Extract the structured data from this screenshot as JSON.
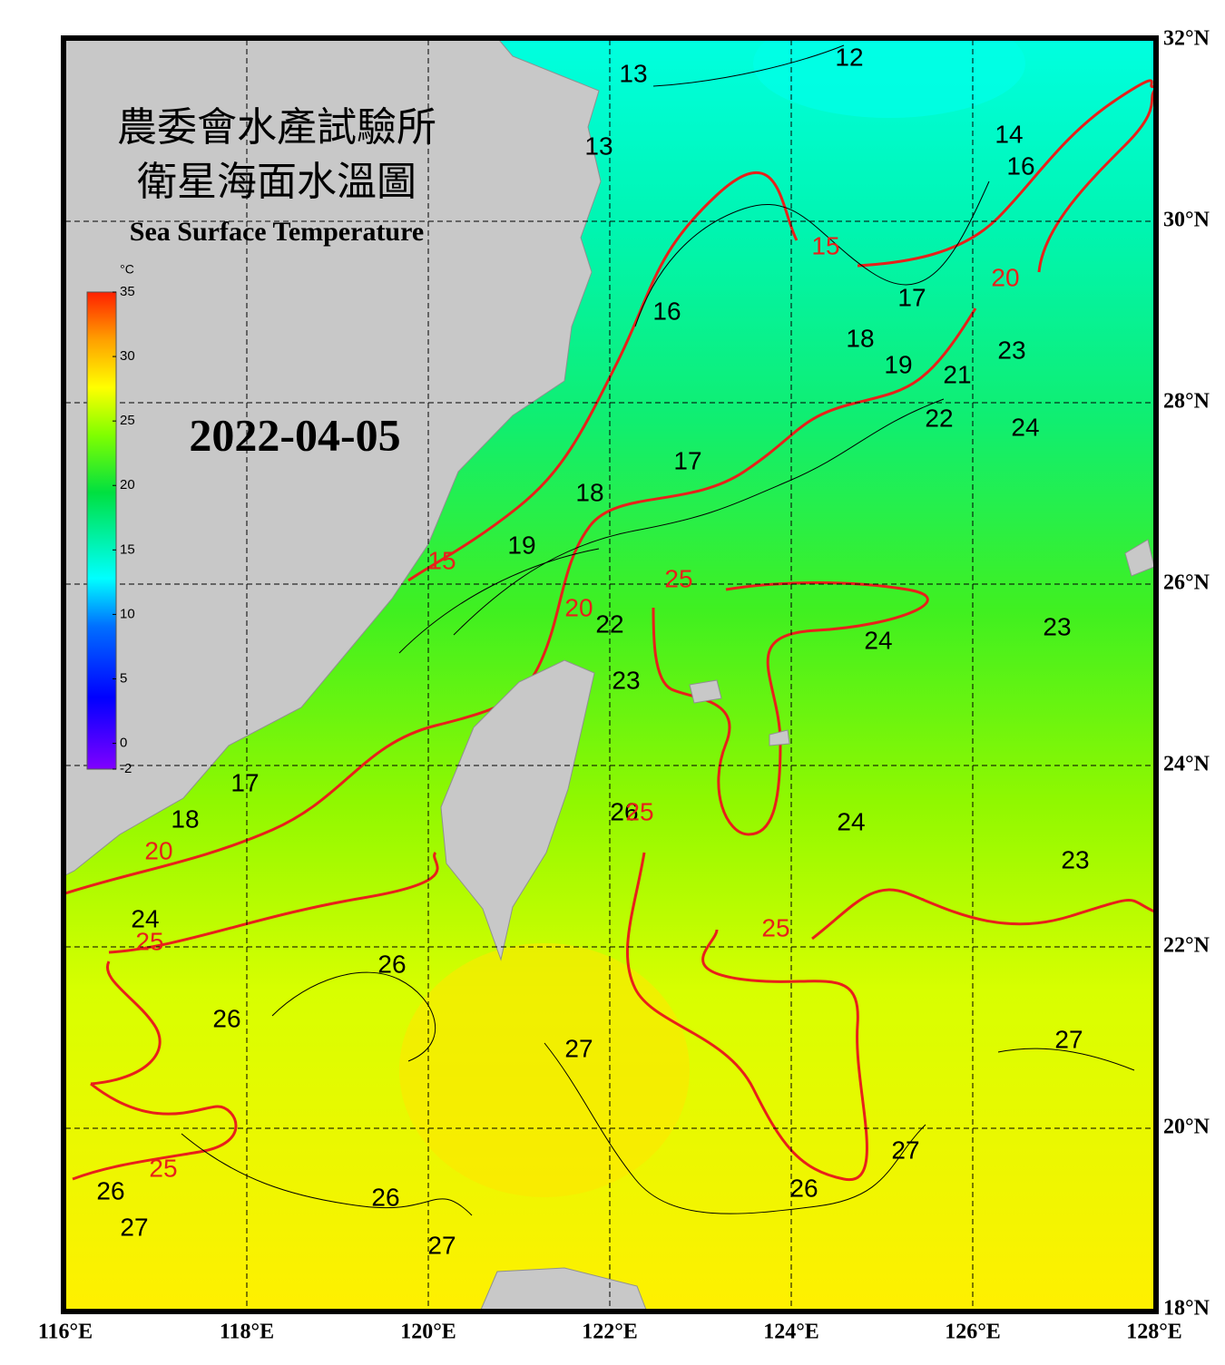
{
  "map": {
    "title_zh_1": "農委會水產試驗所",
    "title_zh_2": "衛星海面水溫圖",
    "title_en": "Sea Surface Temperature",
    "date": "2022-04-05",
    "lonlim": [
      116,
      128
    ],
    "latlim": [
      18,
      32
    ],
    "lonticks": [
      {
        "value": 116,
        "label": "116°E"
      },
      {
        "value": 118,
        "label": "118°E"
      },
      {
        "value": 120,
        "label": "120°E"
      },
      {
        "value": 122,
        "label": "122°E"
      },
      {
        "value": 124,
        "label": "124°E"
      },
      {
        "value": 126,
        "label": "126°E"
      },
      {
        "value": 128,
        "label": "128°E"
      }
    ],
    "latticks": [
      {
        "value": 18,
        "label": "18°N"
      },
      {
        "value": 20,
        "label": "20°N"
      },
      {
        "value": 22,
        "label": "22°N"
      },
      {
        "value": 24,
        "label": "24°N"
      },
      {
        "value": 26,
        "label": "26°N"
      },
      {
        "value": 28,
        "label": "28°N"
      },
      {
        "value": 30,
        "label": "30°N"
      },
      {
        "value": 32,
        "label": "32°N"
      }
    ],
    "colorbar": {
      "unit": "°C",
      "lim": [
        -2,
        35
      ],
      "ticks": [
        35,
        30,
        25,
        20,
        15,
        10,
        5,
        0,
        -2
      ]
    },
    "contour_labels": [
      {
        "text": "12",
        "lon": 124.64,
        "lat": 31.79,
        "color": "#000000"
      },
      {
        "text": "13",
        "lon": 122.26,
        "lat": 31.61,
        "color": "#000000"
      },
      {
        "text": "13",
        "lon": 121.88,
        "lat": 30.81,
        "color": "#000000"
      },
      {
        "text": "14",
        "lon": 126.4,
        "lat": 30.94,
        "color": "#000000"
      },
      {
        "text": "16",
        "lon": 126.53,
        "lat": 30.59,
        "color": "#000000"
      },
      {
        "text": "15",
        "lon": 124.38,
        "lat": 29.71,
        "color": "#e8201a"
      },
      {
        "text": "20",
        "lon": 126.36,
        "lat": 29.36,
        "color": "#e8201a"
      },
      {
        "text": "17",
        "lon": 125.33,
        "lat": 29.14,
        "color": "#000000"
      },
      {
        "text": "16",
        "lon": 122.63,
        "lat": 28.99,
        "color": "#000000"
      },
      {
        "text": "18",
        "lon": 124.76,
        "lat": 28.69,
        "color": "#000000"
      },
      {
        "text": "19",
        "lon": 125.18,
        "lat": 28.4,
        "color": "#000000"
      },
      {
        "text": "21",
        "lon": 125.83,
        "lat": 28.29,
        "color": "#000000"
      },
      {
        "text": "23",
        "lon": 126.43,
        "lat": 28.56,
        "color": "#000000"
      },
      {
        "text": "22",
        "lon": 125.63,
        "lat": 27.81,
        "color": "#000000"
      },
      {
        "text": "24",
        "lon": 126.58,
        "lat": 27.71,
        "color": "#000000"
      },
      {
        "text": "17",
        "lon": 122.86,
        "lat": 27.34,
        "color": "#000000"
      },
      {
        "text": "18",
        "lon": 121.78,
        "lat": 26.99,
        "color": "#000000"
      },
      {
        "text": "19",
        "lon": 121.03,
        "lat": 26.41,
        "color": "#000000"
      },
      {
        "text": "15",
        "lon": 120.15,
        "lat": 26.24,
        "color": "#e8201a"
      },
      {
        "text": "25",
        "lon": 122.76,
        "lat": 26.04,
        "color": "#e8201a"
      },
      {
        "text": "20",
        "lon": 121.66,
        "lat": 25.72,
        "color": "#e8201a"
      },
      {
        "text": "22",
        "lon": 122.0,
        "lat": 25.54,
        "color": "#000000"
      },
      {
        "text": "24",
        "lon": 124.96,
        "lat": 25.36,
        "color": "#000000"
      },
      {
        "text": "23",
        "lon": 126.93,
        "lat": 25.51,
        "color": "#000000"
      },
      {
        "text": "23",
        "lon": 122.18,
        "lat": 24.92,
        "color": "#000000"
      },
      {
        "text": "17",
        "lon": 117.98,
        "lat": 23.79,
        "color": "#000000"
      },
      {
        "text": "18",
        "lon": 117.32,
        "lat": 23.39,
        "color": "#000000"
      },
      {
        "text": "20",
        "lon": 117.03,
        "lat": 23.04,
        "color": "#e8201a"
      },
      {
        "text": "24",
        "lon": 124.66,
        "lat": 23.36,
        "color": "#000000"
      },
      {
        "text": "26",
        "lon": 122.16,
        "lat": 23.47,
        "color": "#000000"
      },
      {
        "text": "25",
        "lon": 122.33,
        "lat": 23.47,
        "color": "#e8201a"
      },
      {
        "text": "23",
        "lon": 127.13,
        "lat": 22.94,
        "color": "#000000"
      },
      {
        "text": "24",
        "lon": 116.88,
        "lat": 22.29,
        "color": "#000000"
      },
      {
        "text": "25",
        "lon": 116.93,
        "lat": 22.04,
        "color": "#e8201a"
      },
      {
        "text": "25",
        "lon": 123.83,
        "lat": 22.19,
        "color": "#e8201a"
      },
      {
        "text": "26",
        "lon": 119.6,
        "lat": 21.79,
        "color": "#000000"
      },
      {
        "text": "26",
        "lon": 117.78,
        "lat": 21.19,
        "color": "#000000"
      },
      {
        "text": "27",
        "lon": 121.66,
        "lat": 20.86,
        "color": "#000000"
      },
      {
        "text": "27",
        "lon": 127.06,
        "lat": 20.96,
        "color": "#000000"
      },
      {
        "text": "27",
        "lon": 125.26,
        "lat": 19.74,
        "color": "#000000"
      },
      {
        "text": "25",
        "lon": 117.08,
        "lat": 19.54,
        "color": "#e8201a"
      },
      {
        "text": "26",
        "lon": 116.5,
        "lat": 19.29,
        "color": "#000000"
      },
      {
        "text": "26",
        "lon": 119.53,
        "lat": 19.22,
        "color": "#000000"
      },
      {
        "text": "26",
        "lon": 124.14,
        "lat": 19.32,
        "color": "#000000"
      },
      {
        "text": "27",
        "lon": 116.76,
        "lat": 18.89,
        "color": "#000000"
      },
      {
        "text": "27",
        "lon": 120.15,
        "lat": 18.69,
        "color": "#000000"
      }
    ]
  }
}
